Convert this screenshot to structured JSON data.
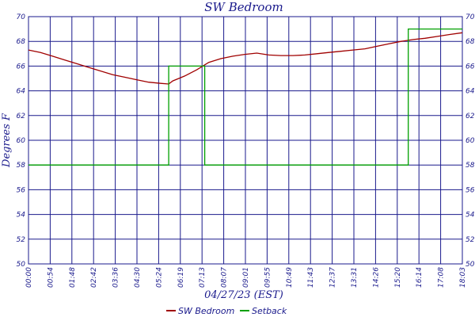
{
  "chart_data": {
    "type": "line",
    "title": "SW Bedroom",
    "xlabel": "04/27/23 (EST)",
    "ylabel": "Degrees F",
    "ylim": [
      50,
      70
    ],
    "yticks": [
      50,
      52,
      54,
      56,
      58,
      60,
      62,
      64,
      66,
      68,
      70
    ],
    "x_tick_labels": [
      "00:00",
      "00:54",
      "01:48",
      "02:42",
      "03:36",
      "04:30",
      "05:24",
      "06:19",
      "07:13",
      "08:07",
      "09:01",
      "09:55",
      "10:49",
      "11:43",
      "12:37",
      "13:31",
      "14:26",
      "15:20",
      "16:14",
      "17:08",
      "18:03"
    ],
    "xlim": [
      0,
      1083
    ],
    "grid": true,
    "legend": "bottom",
    "colors": {
      "grid": "#1a1a8c",
      "sw_bedroom": "#a00000",
      "setback": "#00a000"
    },
    "series": [
      {
        "name": "SW Bedroom",
        "x": [
          0,
          30,
          60,
          90,
          120,
          150,
          180,
          210,
          240,
          270,
          300,
          330,
          350,
          360,
          375,
          390,
          420,
          450,
          480,
          510,
          540,
          570,
          600,
          630,
          660,
          690,
          720,
          750,
          780,
          810,
          840,
          870,
          900,
          930,
          960,
          990,
          1020,
          1050,
          1083
        ],
        "values": [
          67.3,
          67.1,
          66.8,
          66.5,
          66.2,
          65.9,
          65.6,
          65.3,
          65.1,
          64.9,
          64.7,
          64.6,
          64.55,
          64.8,
          65.0,
          65.2,
          65.7,
          66.3,
          66.6,
          66.8,
          66.95,
          67.05,
          66.9,
          66.85,
          66.85,
          66.9,
          67.0,
          67.1,
          67.2,
          67.3,
          67.4,
          67.6,
          67.8,
          68.0,
          68.15,
          68.25,
          68.4,
          68.55,
          68.7
        ]
      },
      {
        "name": "Setback",
        "step": true,
        "x": [
          0,
          350,
          350,
          440,
          440,
          948,
          948,
          1083
        ],
        "values": [
          58,
          58,
          66,
          66,
          58,
          58,
          69,
          69
        ]
      }
    ]
  }
}
